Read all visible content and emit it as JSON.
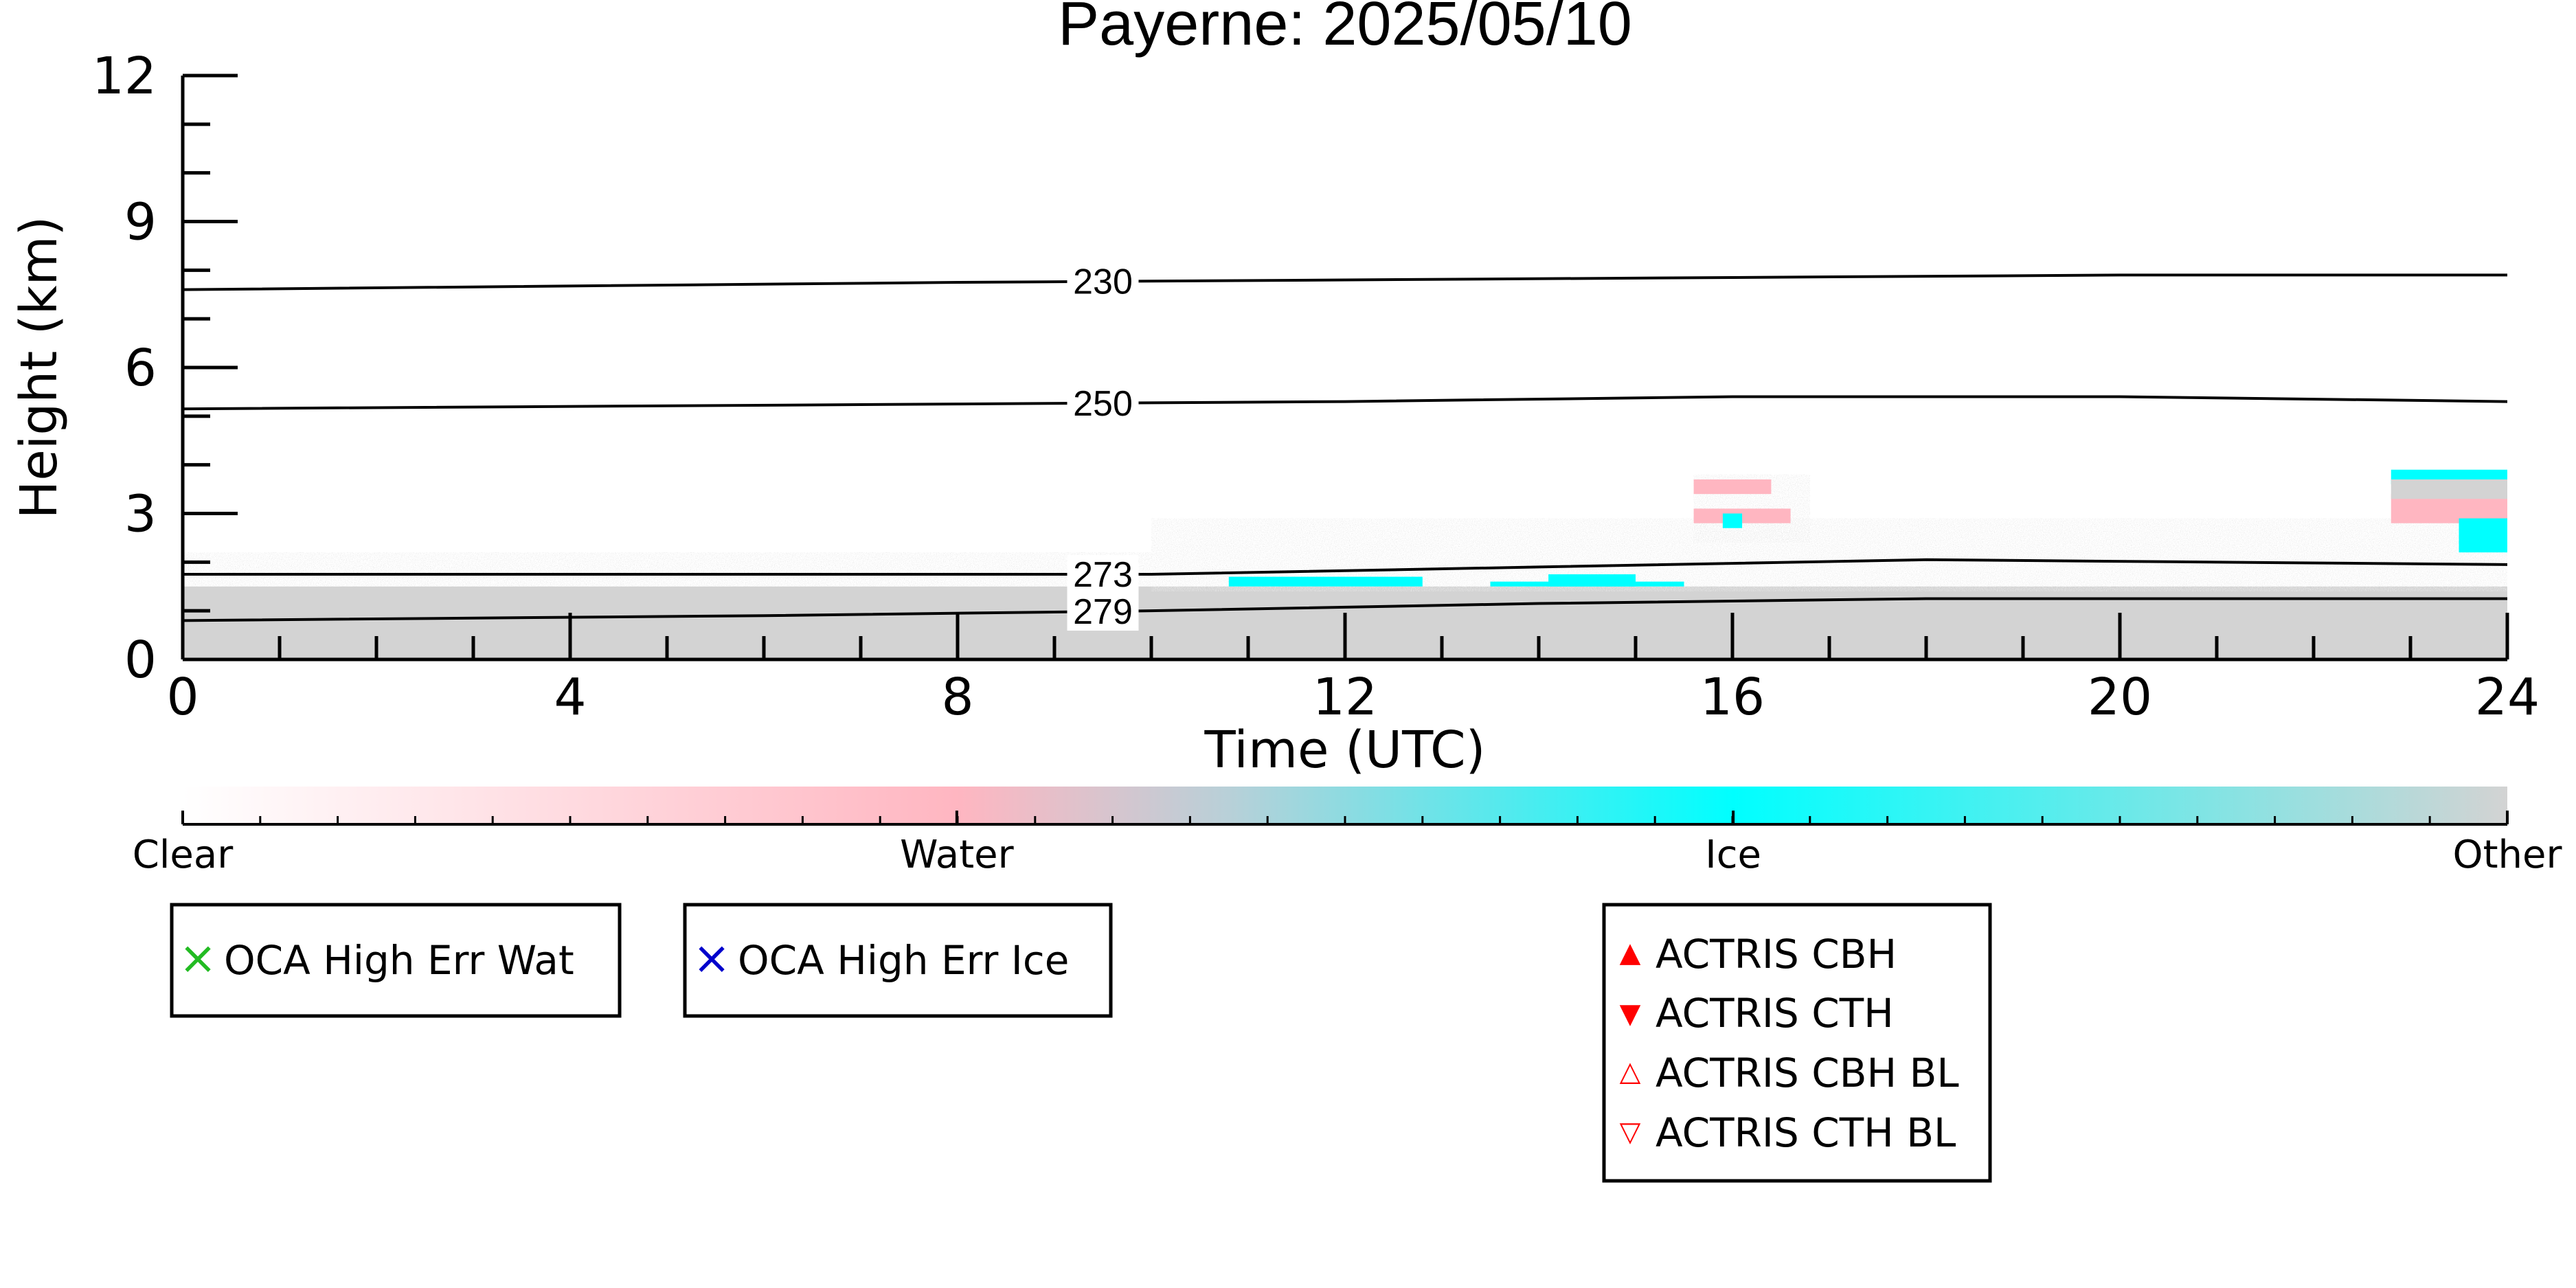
{
  "chart_data": {
    "type": "heatmap",
    "title": "Payerne: 2025/05/10",
    "xlabel": "Time (UTC)",
    "ylabel": "Height (km)",
    "xlim": [
      0,
      24
    ],
    "ylim": [
      0,
      12
    ],
    "x_ticks": [
      0,
      4,
      8,
      12,
      16,
      20,
      24
    ],
    "y_ticks": [
      0,
      3,
      6,
      9,
      12
    ],
    "x_tick_labels": [
      "0",
      "4",
      "8",
      "12",
      "16",
      "20",
      "24"
    ],
    "y_tick_labels": [
      "0",
      "3",
      "6",
      "9",
      "12"
    ],
    "colors": {
      "clear": "#ffffff",
      "water": "#ffb6c1",
      "ice": "#00ffff",
      "other": "#d3d3d3",
      "contour": "#000000",
      "actris": "#ff0000",
      "oca_water": "#22bb22",
      "oca_ice": "#0000cc"
    },
    "classification_regions": [
      {
        "class": "other",
        "time": [
          0,
          24
        ],
        "height": [
          0,
          1.5
        ]
      },
      {
        "class": "other",
        "time": [
          0,
          10
        ],
        "height": [
          1.5,
          2.2
        ],
        "texture": "sparse"
      },
      {
        "class": "other",
        "time": [
          10,
          24
        ],
        "height": [
          1.4,
          2.9
        ],
        "texture": "sparse"
      },
      {
        "class": "ice",
        "time": [
          10.8,
          12.8
        ],
        "height": [
          1.5,
          1.7
        ]
      },
      {
        "class": "ice",
        "time": [
          14.1,
          15.0
        ],
        "height": [
          1.5,
          1.75
        ]
      },
      {
        "class": "ice",
        "time": [
          13.5,
          15.5
        ],
        "height": [
          1.5,
          1.6
        ]
      },
      {
        "class": "other",
        "time": [
          15.6,
          16.8
        ],
        "height": [
          2.4,
          3.8
        ],
        "texture": "sparse"
      },
      {
        "class": "water",
        "time": [
          15.6,
          16.6
        ],
        "height": [
          2.8,
          3.1
        ]
      },
      {
        "class": "water",
        "time": [
          15.6,
          16.4
        ],
        "height": [
          3.4,
          3.7
        ]
      },
      {
        "class": "ice",
        "time": [
          15.9,
          16.1
        ],
        "height": [
          2.7,
          3.0
        ]
      },
      {
        "class": "ice",
        "time": [
          22.8,
          24
        ],
        "height": [
          3.6,
          3.9
        ]
      },
      {
        "class": "water",
        "time": [
          22.8,
          24
        ],
        "height": [
          2.8,
          3.4
        ]
      },
      {
        "class": "other",
        "time": [
          22.8,
          24
        ],
        "height": [
          3.3,
          3.7
        ]
      },
      {
        "class": "ice",
        "time": [
          23.5,
          24
        ],
        "height": [
          2.2,
          2.9
        ]
      }
    ],
    "temperature_contours": [
      {
        "label": "230",
        "points": [
          [
            0,
            7.6
          ],
          [
            8,
            7.75
          ],
          [
            12,
            7.8
          ],
          [
            16,
            7.85
          ],
          [
            20,
            7.9
          ],
          [
            24,
            7.9
          ]
        ],
        "label_at": 9.5
      },
      {
        "label": "250",
        "points": [
          [
            0,
            5.15
          ],
          [
            8,
            5.25
          ],
          [
            12,
            5.3
          ],
          [
            16,
            5.4
          ],
          [
            20,
            5.4
          ],
          [
            24,
            5.3
          ]
        ],
        "label_at": 9.5
      },
      {
        "label": "273",
        "points": [
          [
            0,
            1.75
          ],
          [
            6,
            1.75
          ],
          [
            10,
            1.75
          ],
          [
            14,
            1.9
          ],
          [
            18,
            2.05
          ],
          [
            24,
            1.95
          ]
        ],
        "label_at": 9.5
      },
      {
        "label": "279",
        "points": [
          [
            0,
            0.8
          ],
          [
            6,
            0.9
          ],
          [
            10,
            1.0
          ],
          [
            14,
            1.15
          ],
          [
            18,
            1.25
          ],
          [
            24,
            1.25
          ]
        ],
        "label_at": 9.5
      }
    ],
    "colorbar": {
      "labels": [
        "Clear",
        "Water",
        "Ice",
        "Other"
      ],
      "positions": [
        0,
        0.333,
        0.667,
        1.0
      ]
    }
  },
  "legends": {
    "oca_water": {
      "label": "OCA High Err Wat",
      "marker": "×"
    },
    "oca_ice": {
      "label": "OCA High Err Ice",
      "marker": "×"
    },
    "actris": [
      {
        "label": "ACTRIS CBH",
        "marker": "▲"
      },
      {
        "label": "ACTRIS CTH",
        "marker": "▼"
      },
      {
        "label": "ACTRIS CBH BL",
        "marker": "△"
      },
      {
        "label": "ACTRIS CTH BL",
        "marker": "▽"
      }
    ]
  }
}
